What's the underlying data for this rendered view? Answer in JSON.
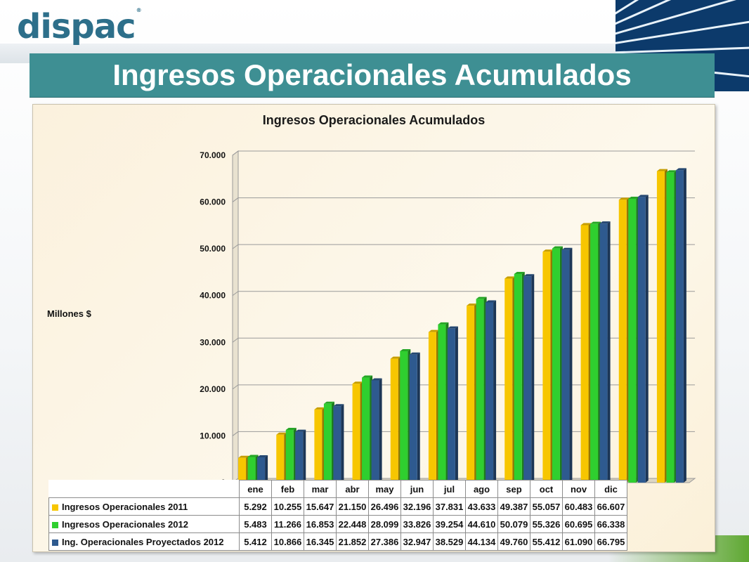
{
  "logo": {
    "text": "dispac",
    "mark": "®"
  },
  "slide_title": "Ingresos Operacionales Acumulados",
  "colors": {
    "s2011": "#f7c600",
    "s2012": "#2fcf2f",
    "proj2012": "#2e5a8f",
    "title_bar": "#3e8f93"
  },
  "chart_data": {
    "type": "bar",
    "title": "Ingresos Operacionales Acumulados",
    "ylabel": "Millones $",
    "xlabel": "",
    "ylim": [
      0,
      70000
    ],
    "yticks": [
      0,
      10000,
      20000,
      30000,
      40000,
      50000,
      60000,
      70000
    ],
    "ytick_labels": [
      "0",
      "10.000",
      "20.000",
      "30.000",
      "40.000",
      "50.000",
      "60.000",
      "70.000"
    ],
    "categories": [
      "ene",
      "feb",
      "mar",
      "abr",
      "may",
      "jun",
      "jul",
      "ago",
      "sep",
      "oct",
      "nov",
      "dic"
    ],
    "series": [
      {
        "name": "Ingresos Operacionales 2011",
        "color": "#f7c600",
        "values": [
          5292,
          10255,
          15647,
          21150,
          26496,
          32196,
          37831,
          43633,
          49387,
          55057,
          60483,
          66607
        ],
        "labels": [
          "5.292",
          "10.255",
          "15.647",
          "21.150",
          "26.496",
          "32.196",
          "37.831",
          "43.633",
          "49.387",
          "55.057",
          "60.483",
          "66.607"
        ]
      },
      {
        "name": "Ingresos Operacionales 2012",
        "color": "#2fcf2f",
        "values": [
          5483,
          11266,
          16853,
          22448,
          28099,
          33826,
          39254,
          44610,
          50079,
          55326,
          60695,
          66338
        ],
        "labels": [
          "5.483",
          "11.266",
          "16.853",
          "22.448",
          "28.099",
          "33.826",
          "39.254",
          "44.610",
          "50.079",
          "55.326",
          "60.695",
          "66.338"
        ]
      },
      {
        "name": "Ing. Operacionales Proyectados 2012",
        "color": "#2e5a8f",
        "values": [
          5412,
          10866,
          16345,
          21852,
          27386,
          32947,
          38529,
          44134,
          49760,
          55412,
          61090,
          66795
        ],
        "labels": [
          "5.412",
          "10.866",
          "16.345",
          "21.852",
          "27.386",
          "32.947",
          "38.529",
          "44.134",
          "49.760",
          "55.412",
          "61.090",
          "66.795"
        ]
      }
    ],
    "grid": true,
    "legend": "data-table"
  }
}
